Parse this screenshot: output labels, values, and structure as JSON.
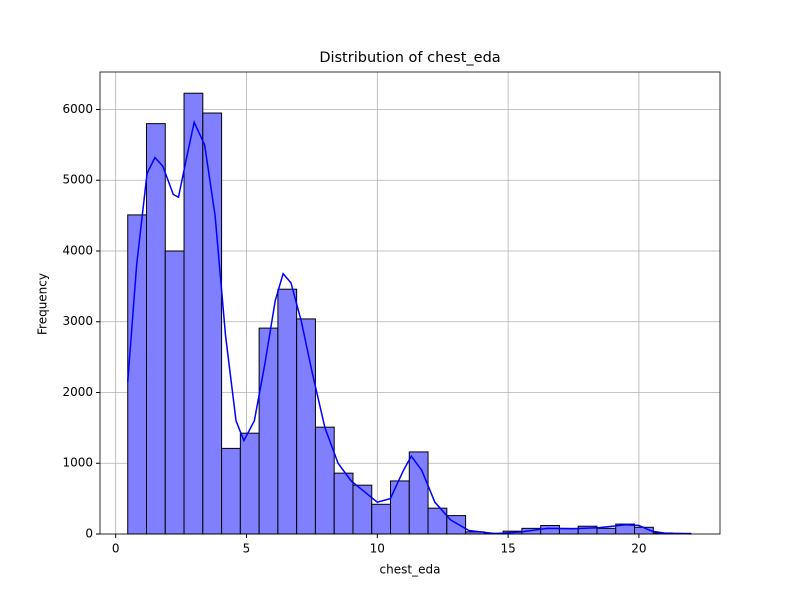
{
  "chart_data": {
    "type": "histogram",
    "title": "Distribution of chest_eda",
    "x_label": "chest_eda",
    "y_label": "Frequency",
    "bins": [
      0.46,
      1.1775,
      1.895,
      2.6125,
      3.33,
      4.0475,
      4.765,
      5.4825,
      6.2,
      6.9175,
      7.635,
      8.3525,
      9.07,
      9.7875,
      10.505,
      11.2225,
      11.94,
      12.6575,
      13.375,
      14.0925,
      14.81,
      15.5275,
      16.245,
      16.9625,
      17.68,
      18.3975,
      19.115,
      19.8325,
      20.55,
      21.2675,
      21.985
    ],
    "counts": [
      4510,
      5800,
      4000,
      6230,
      5950,
      1210,
      1425,
      2910,
      3460,
      3040,
      1510,
      860,
      690,
      420,
      750,
      1160,
      365,
      260,
      30,
      10,
      40,
      80,
      120,
      80,
      110,
      80,
      140,
      95,
      15,
      10
    ],
    "color": "#8080ff",
    "edgecolor": "#000000",
    "kde": {
      "color": "#0000ff",
      "x": [
        0.46,
        0.8,
        1.2,
        1.5,
        1.8,
        2.2,
        2.4,
        2.7,
        3.0,
        3.4,
        3.8,
        4.2,
        4.6,
        4.9,
        5.3,
        5.7,
        6.1,
        6.4,
        6.7,
        7.1,
        7.5,
        8.0,
        8.5,
        9.0,
        9.5,
        10.0,
        10.5,
        11.0,
        11.3,
        11.7,
        12.2,
        12.8,
        13.5,
        14.5,
        15.5,
        16.5,
        17.5,
        18.5,
        19.5,
        20.0,
        20.5,
        21.0,
        22.0
      ],
      "values": [
        2150,
        3800,
        5100,
        5320,
        5200,
        4800,
        4760,
        5300,
        5820,
        5500,
        4500,
        2800,
        1600,
        1320,
        1600,
        2400,
        3300,
        3680,
        3550,
        3000,
        2300,
        1500,
        1000,
        750,
        600,
        450,
        500,
        900,
        1100,
        900,
        450,
        200,
        50,
        5,
        30,
        80,
        75,
        90,
        130,
        120,
        40,
        10,
        2
      ]
    },
    "xlim": [
      -0.6,
      23.1
    ],
    "ylim": [
      0,
      6530
    ],
    "xticks": [
      0,
      5,
      10,
      15,
      20
    ],
    "yticks": [
      0,
      1000,
      2000,
      3000,
      4000,
      5000,
      6000
    ],
    "grid": true
  }
}
